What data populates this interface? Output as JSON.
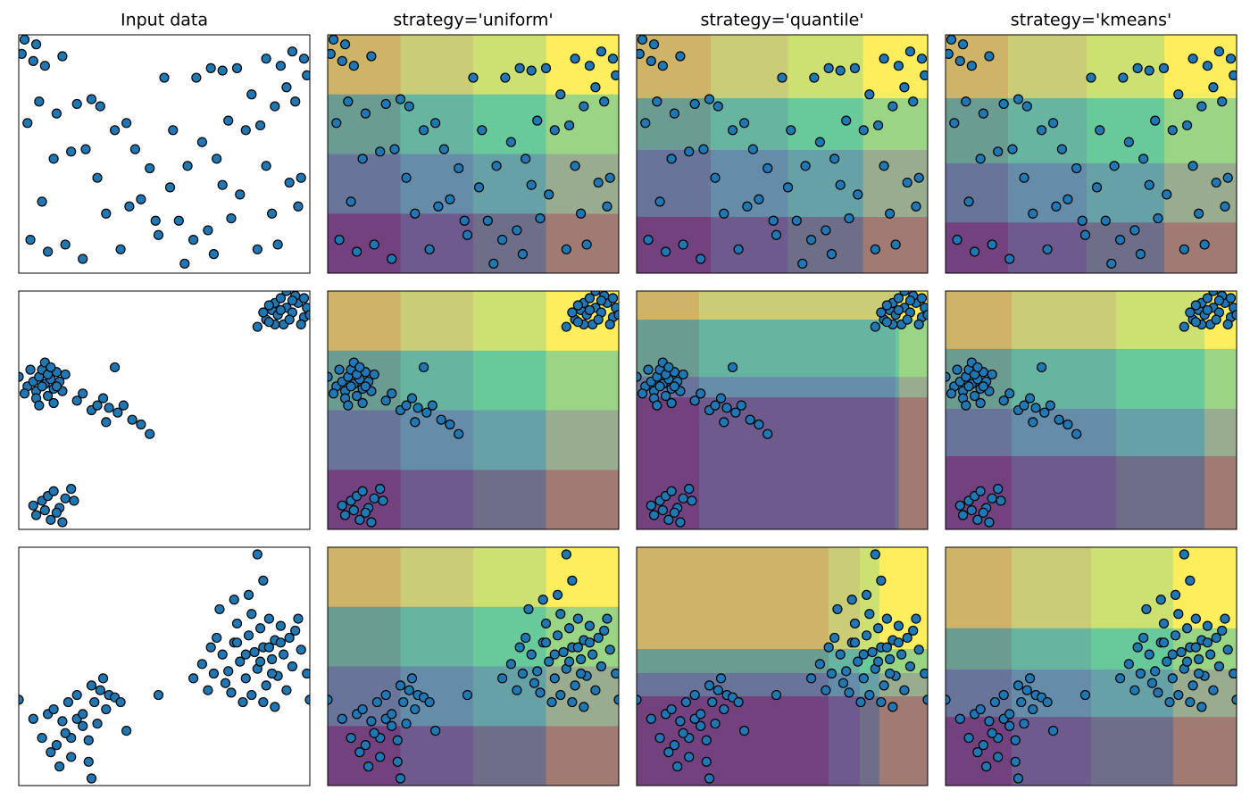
{
  "columns": [
    "Input data",
    "strategy='uniform'",
    "strategy='quantile'",
    "strategy='kmeans'"
  ],
  "bin_colors": [
    "#440154",
    "#31688e",
    "#35b779",
    "#fde725"
  ],
  "bin_alpha": 0.5,
  "chart_data": [
    {
      "type": "scatter",
      "color": "#1f77b4",
      "edge_color": "#000000",
      "xlim": [
        0,
        100
      ],
      "ylim": [
        0,
        100
      ],
      "x": [
        2,
        6,
        5,
        9,
        15,
        1,
        50,
        61,
        66,
        70,
        75,
        85,
        90,
        94,
        98,
        99,
        92,
        80,
        13,
        20,
        7,
        3,
        25,
        28,
        33,
        37,
        40,
        45,
        53,
        58,
        63,
        68,
        72,
        78,
        83,
        88,
        95,
        97,
        12,
        18,
        23,
        30,
        38,
        42,
        48,
        55,
        60,
        67,
        73,
        82,
        87,
        93,
        4,
        10,
        16,
        22,
        35,
        47,
        57,
        65,
        76,
        89,
        96,
        8,
        27,
        52,
        70,
        85
      ],
      "y": [
        98,
        96,
        89,
        87,
        91,
        92,
        82,
        82,
        86,
        85,
        86,
        90,
        87,
        93,
        90,
        83,
        78,
        75,
        67,
        71,
        72,
        63,
        73,
        70,
        60,
        63,
        52,
        44,
        60,
        45,
        55,
        48,
        64,
        60,
        62,
        70,
        72,
        40,
        48,
        51,
        52,
        25,
        28,
        31,
        16,
        22,
        14,
        8,
        23,
        10,
        25,
        38,
        14,
        9,
        12,
        6,
        10,
        22,
        4,
        18,
        33,
        12,
        28,
        30,
        40,
        36,
        37,
        45
      ],
      "strategies": [
        {
          "x_edges": [
            25,
            50,
            75
          ],
          "y_edges": [
            25,
            50,
            75
          ]
        },
        {
          "x_edges": [
            25.5,
            52,
            77.8
          ],
          "y_edges": [
            23.6,
            51.7,
            73.4
          ]
        },
        {
          "x_edges": [
            21.5,
            48.5,
            75.2
          ],
          "y_edges": [
            21.3,
            46.1,
            73.4
          ]
        }
      ]
    },
    {
      "type": "scatter",
      "color": "#1f77b4",
      "edge_color": "#000000",
      "xlim": [
        0,
        100
      ],
      "ylim": [
        0,
        100
      ],
      "x": [
        82,
        85,
        87,
        88,
        90,
        92,
        94,
        96,
        98,
        99,
        86,
        89,
        91,
        93,
        95,
        97,
        100,
        84,
        92,
        88,
        94,
        90,
        86,
        98,
        0,
        3,
        5,
        6,
        7,
        8,
        9,
        10,
        11,
        12,
        13,
        14,
        15,
        4,
        6,
        9,
        12,
        16,
        8,
        10,
        7,
        2,
        13,
        11,
        22,
        25,
        27,
        29,
        31,
        34,
        36,
        39,
        42,
        33,
        30,
        20,
        45,
        5,
        8,
        10,
        12,
        14,
        16,
        19,
        6,
        11,
        13,
        15,
        18,
        9
      ],
      "y": [
        85,
        88,
        92,
        95,
        97,
        93,
        91,
        95,
        89,
        93,
        94,
        90,
        86,
        88,
        98,
        86,
        90,
        91,
        100,
        86,
        96,
        92,
        87,
        97,
        64,
        60,
        62,
        58,
        64,
        67,
        61,
        56,
        63,
        59,
        66,
        62,
        58,
        67,
        55,
        70,
        53,
        65,
        60,
        65,
        52,
        57,
        60,
        68,
        57,
        50,
        52,
        55,
        51,
        49,
        52,
        46,
        44,
        68,
        45,
        54,
        40,
        10,
        12,
        14,
        16,
        9,
        13,
        12,
        6,
        4,
        7,
        3,
        17,
        8
      ],
      "strategies": [
        {
          "x_edges": [
            25,
            50,
            75
          ],
          "y_edges": [
            25,
            50,
            75
          ]
        },
        {
          "x_edges": [
            21.5,
            88.9,
            90.2
          ],
          "y_edges": [
            55.4,
            64,
            88
          ]
        },
        {
          "x_edges": [
            22.7,
            58.6,
            89
          ],
          "y_edges": [
            30.7,
            50.6,
            75.7
          ]
        }
      ]
    },
    {
      "type": "scatter",
      "color": "#1f77b4",
      "edge_color": "#000000",
      "xlim": [
        0,
        100
      ],
      "ylim": [
        0,
        100
      ],
      "x": [
        60,
        63,
        66,
        68,
        70,
        72,
        74,
        75,
        76,
        78,
        79,
        80,
        81,
        82,
        83,
        84,
        85,
        86,
        87,
        88,
        89,
        90,
        91,
        92,
        93,
        94,
        95,
        97,
        99,
        100,
        73,
        77,
        80,
        84,
        88,
        71,
        67,
        79,
        84,
        82,
        75,
        86,
        90,
        78,
        83,
        87,
        65,
        96,
        69,
        74,
        0,
        8,
        10,
        12,
        15,
        17,
        18,
        20,
        22,
        24,
        25,
        26,
        28,
        29,
        30,
        27,
        31,
        33,
        35,
        37,
        13,
        18,
        24,
        25,
        14,
        5,
        20,
        16,
        11,
        22,
        48
      ],
      "y": [
        45,
        51,
        58,
        62,
        55,
        48,
        60,
        68,
        52,
        45,
        63,
        72,
        56,
        49,
        66,
        58,
        42,
        70,
        53,
        61,
        46,
        67,
        55,
        40,
        62,
        50,
        65,
        57,
        47,
        36,
        39,
        35,
        38,
        35,
        33,
        43,
        47,
        80,
        86,
        97,
        60,
        58,
        60,
        55,
        52,
        47,
        40,
        70,
        74,
        78,
        36,
        20,
        30,
        32,
        27,
        35,
        20,
        28,
        25,
        19,
        42,
        35,
        40,
        45,
        32,
        26,
        38,
        37,
        35,
        23,
        17,
        12,
        10,
        3,
        8,
        28,
        38,
        22,
        14,
        30,
        38
      ],
      "strategies": [
        {
          "x_edges": [
            25,
            50,
            75
          ],
          "y_edges": [
            25,
            50,
            75
          ]
        },
        {
          "x_edges": [
            66,
            76.7,
            83.4
          ],
          "y_edges": [
            37.5,
            47.2,
            57.3
          ]
        },
        {
          "x_edges": [
            22.7,
            50,
            78.2
          ],
          "y_edges": [
            28.8,
            48.7,
            66
          ]
        }
      ]
    }
  ]
}
